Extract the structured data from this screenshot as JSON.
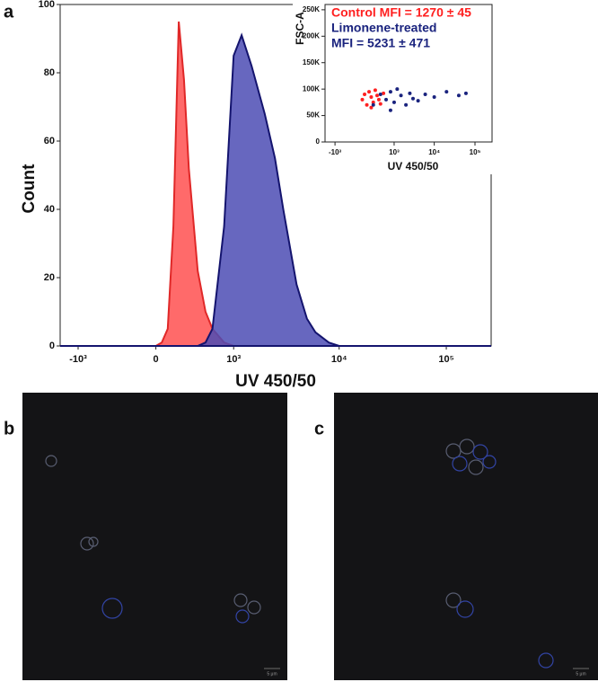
{
  "chart_data": [
    {
      "type": "area",
      "x_scale": "biexponential",
      "xlabel": "UV 450/50",
      "ylabel": "Count",
      "x": [
        -1500,
        0,
        50,
        100,
        150,
        200,
        250,
        300,
        400,
        500,
        600,
        800,
        1000,
        1200,
        1500,
        2000,
        2500,
        3000,
        4000,
        5000,
        6000,
        8000,
        10000,
        262144
      ],
      "series": [
        {
          "color": "#ff5050",
          "values": [
            0,
            0,
            1,
            5,
            35,
            95,
            78,
            52,
            22,
            10,
            5,
            1,
            0,
            0,
            0,
            0,
            0,
            0,
            0,
            0,
            0,
            0,
            0,
            0
          ]
        },
        {
          "color": "#4c4cb4",
          "values": [
            0,
            0,
            0,
            0,
            0,
            0,
            0,
            0,
            0,
            1,
            5,
            35,
            85,
            91,
            82,
            68,
            55,
            40,
            18,
            8,
            4,
            1,
            0,
            0
          ]
        }
      ],
      "xlim": [
        -1500,
        262144
      ],
      "xticks": [
        {
          "value": -1000,
          "label": "-10³"
        },
        0,
        {
          "value": 1000,
          "label": "10³"
        },
        {
          "value": 10000,
          "label": "10⁴"
        },
        {
          "value": 100000,
          "label": "10⁵"
        }
      ],
      "ylim": [
        0,
        100
      ],
      "yticks": [
        0,
        20,
        40,
        60,
        80,
        100
      ]
    },
    {
      "type": "scatter",
      "x_scale": "biexponential",
      "xlabel": "UV 450/50",
      "ylabel": "FSC-A",
      "annotations": [
        {
          "text": "Control MFI = 1270 ± 45",
          "color": "#ff2020"
        },
        {
          "text": "Limonene-treated",
          "color": "#1a237e"
        },
        {
          "text": "MFI = 5231 ± 471",
          "color": "#1a237e"
        }
      ],
      "series": [
        {
          "color": "#ff2020",
          "x": [
            -50,
            0,
            50,
            100,
            150,
            200,
            250,
            300,
            400,
            500,
            150,
            350
          ],
          "values": [
            80000,
            90000,
            70000,
            95000,
            85000,
            75000,
            98000,
            88000,
            72000,
            92000,
            65000,
            80000
          ]
        },
        {
          "color": "#1a237e",
          "x": [
            200,
            400,
            600,
            800,
            1000,
            1500,
            2000,
            2500,
            3000,
            4000,
            6000,
            10000,
            20000,
            40000,
            60000,
            800,
            1200
          ],
          "values": [
            70000,
            90000,
            80000,
            95000,
            75000,
            88000,
            70000,
            92000,
            82000,
            78000,
            90000,
            85000,
            95000,
            88000,
            92000,
            60000,
            100000
          ]
        }
      ],
      "xlim": [
        -1800,
        262144
      ],
      "xticks": [
        {
          "value": -1000,
          "label": "-10³"
        },
        {
          "value": 1000,
          "label": "10³"
        },
        {
          "value": 10000,
          "label": "10⁴"
        },
        {
          "value": 100000,
          "label": "10⁵"
        }
      ],
      "ylim": [
        0,
        260000
      ],
      "yticks": [
        0,
        {
          "value": 50000,
          "label": "50K"
        },
        {
          "value": 100000,
          "label": "100K"
        },
        {
          "value": 150000,
          "label": "150K"
        },
        {
          "value": 200000,
          "label": "200K"
        },
        {
          "value": 250000,
          "label": "250K"
        }
      ]
    }
  ],
  "panels": {
    "a": "a",
    "b": "b",
    "c": "c",
    "scale_bar_b": "5 μm",
    "scale_bar_c": "5 μm"
  }
}
